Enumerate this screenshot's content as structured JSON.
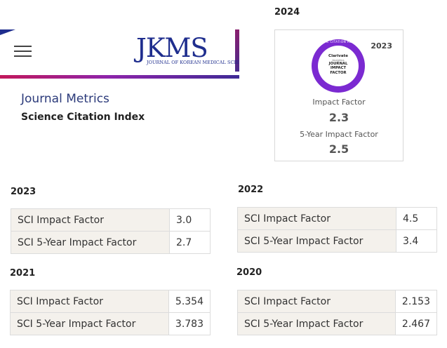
{
  "header": {
    "logo_text": "JKMS",
    "logo_subtitle": "JOURNAL OF KOREAN MEDICAL SCIENCE"
  },
  "page": {
    "title": "Journal Metrics",
    "subtitle": "Science Citation Index"
  },
  "jcr": {
    "year_heading": "2024",
    "badge": {
      "arc_text": "JOURNAL CITATION REPORTS",
      "brand": "Clarivate",
      "brand_sub": "Analytics",
      "line1": "JOURNAL",
      "line2": "IMPACT",
      "line3": "FACTOR"
    },
    "card_year": "2023",
    "impact_label": "Impact Factor",
    "impact_value": "2.3",
    "five_year_label": "5-Year Impact Factor",
    "five_year_value": "2.5"
  },
  "years": [
    {
      "year": "2023",
      "rows": [
        {
          "label": "SCI Impact Factor",
          "value": "3.0"
        },
        {
          "label": "SCI 5-Year Impact Factor",
          "value": "2.7"
        }
      ]
    },
    {
      "year": "2022",
      "rows": [
        {
          "label": "SCI Impact Factor",
          "value": "4.5"
        },
        {
          "label": "SCI 5-Year Impact Factor",
          "value": "3.4"
        }
      ]
    },
    {
      "year": "2021",
      "rows": [
        {
          "label": "SCI Impact Factor",
          "value": "5.354"
        },
        {
          "label": "SCI 5-Year Impact Factor",
          "value": "3.783"
        }
      ]
    },
    {
      "year": "2020",
      "rows": [
        {
          "label": "SCI Impact Factor",
          "value": "2.153"
        },
        {
          "label": "SCI 5-Year Impact Factor",
          "value": "2.467"
        }
      ]
    }
  ]
}
